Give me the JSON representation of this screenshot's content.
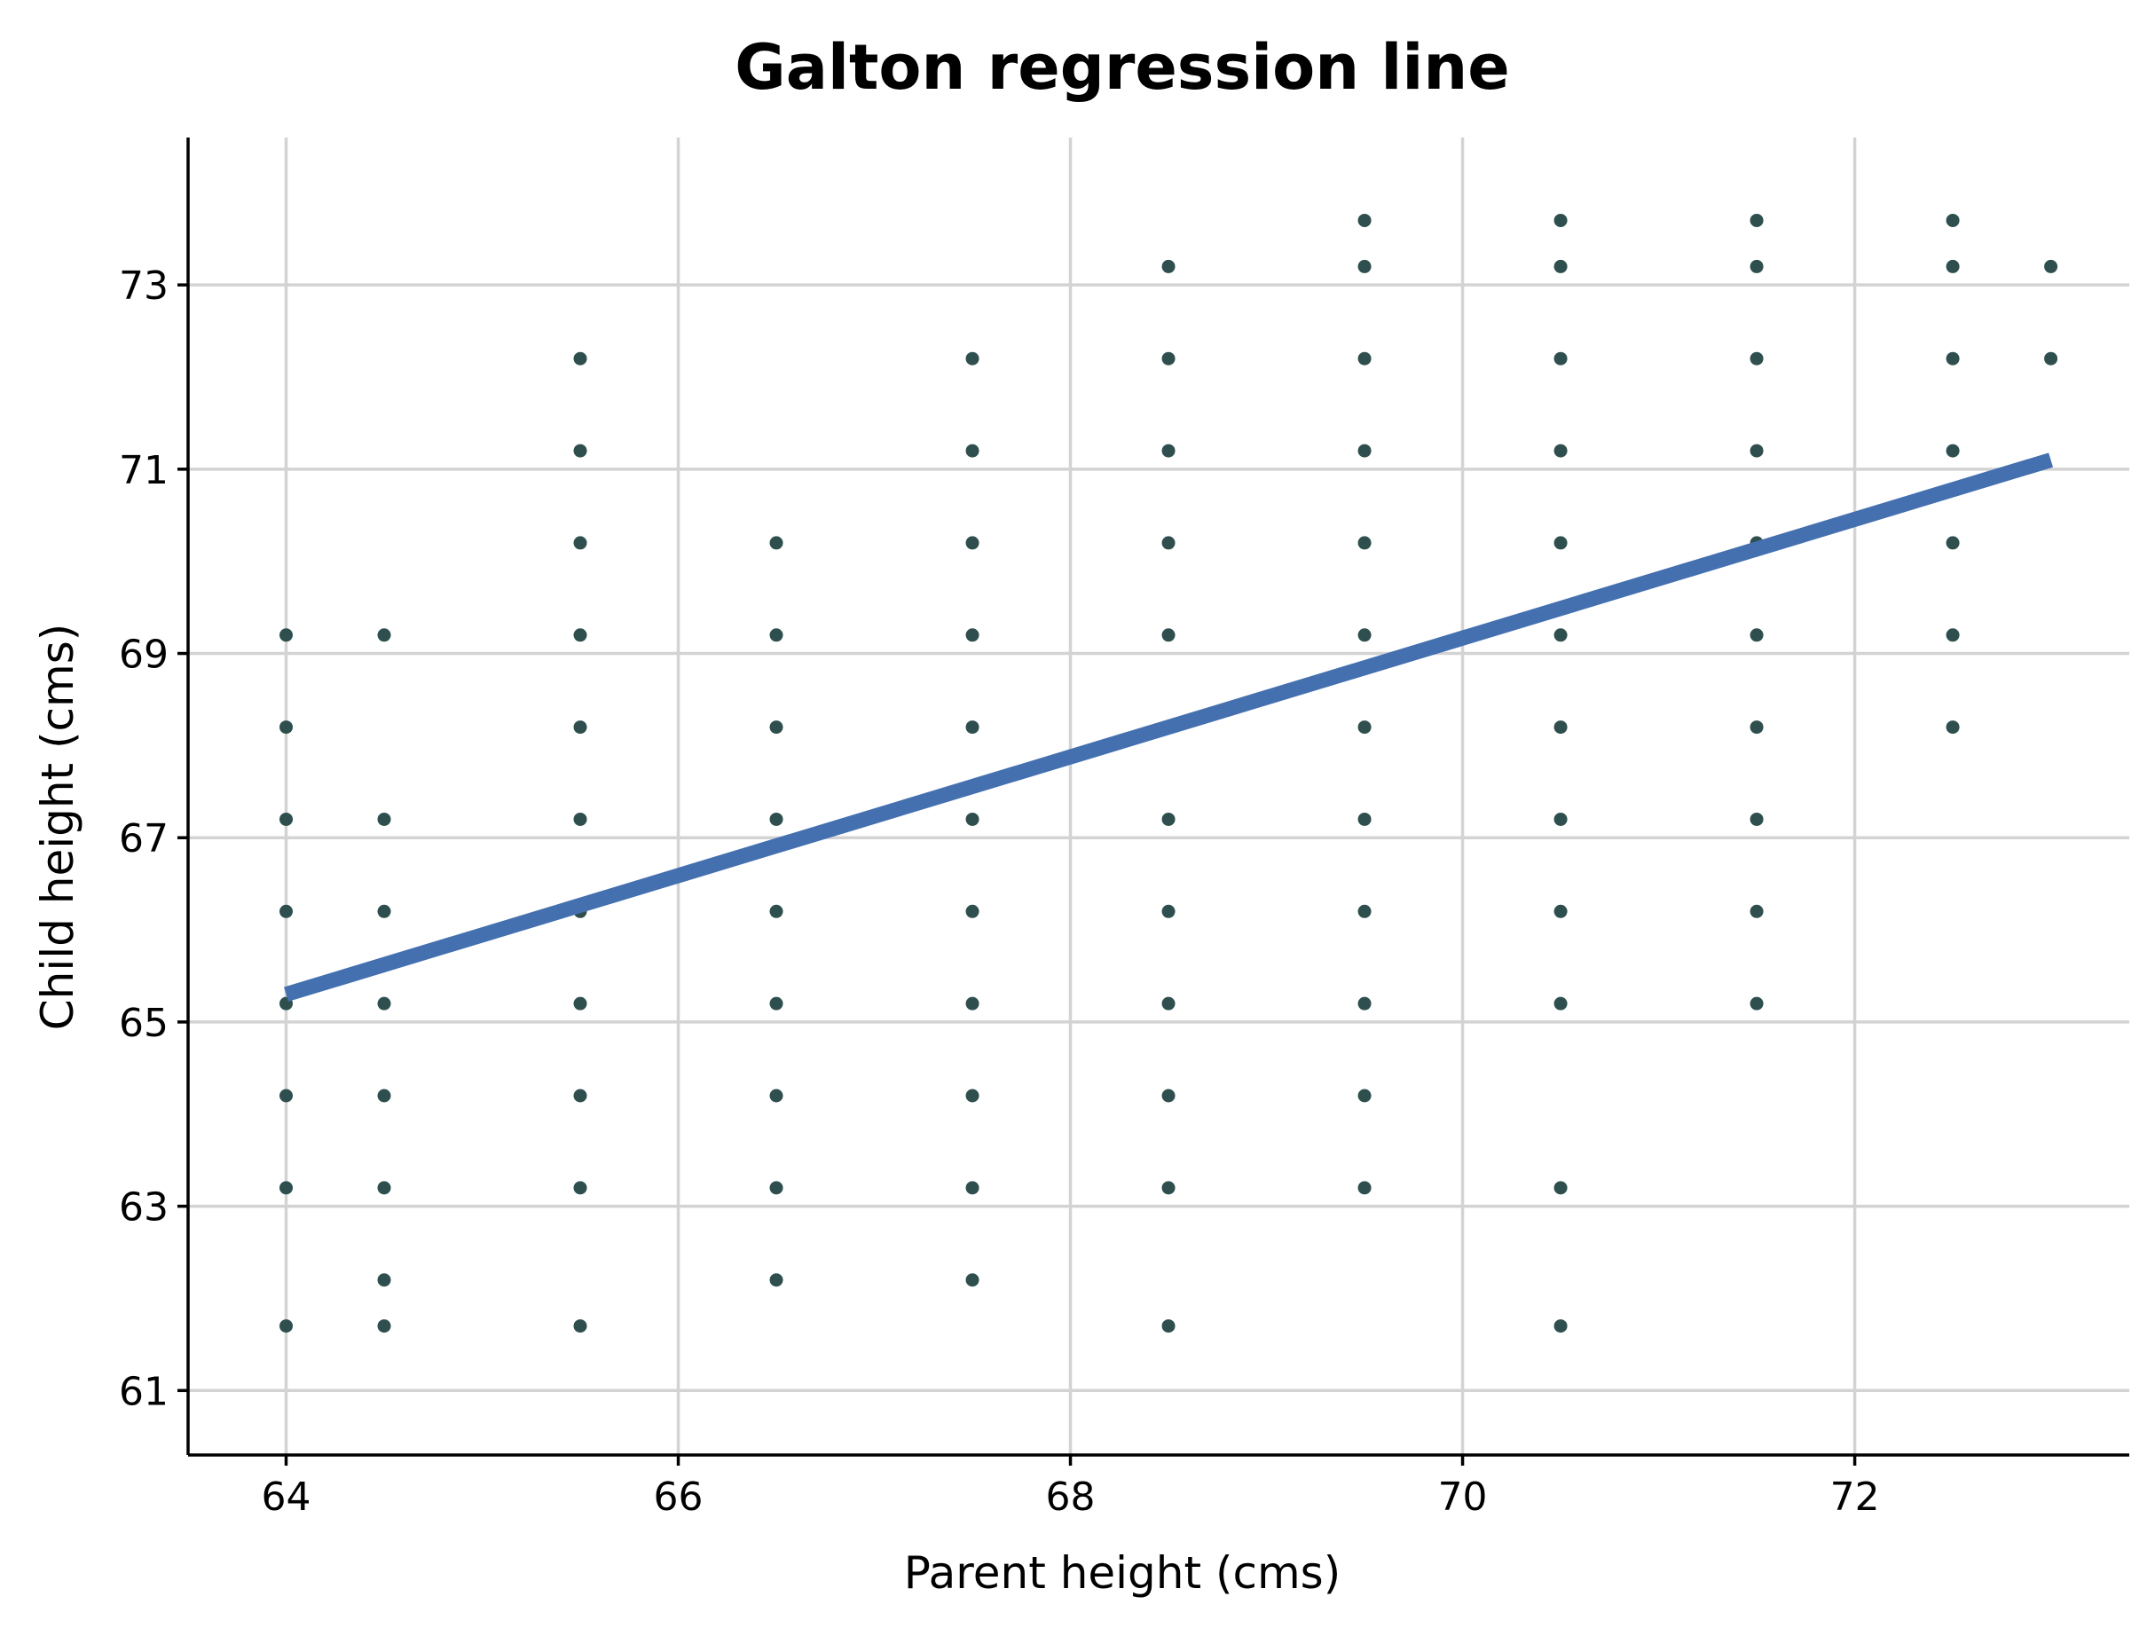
{
  "chart_data": {
    "type": "scatter",
    "title": "Galton regression line",
    "xlabel": "Parent height (cms)",
    "ylabel": "Child height (cms)",
    "xlim": [
      63.5,
      73.4
    ],
    "ylim": [
      60.3,
      74.6
    ],
    "x_ticks": [
      64,
      66,
      68,
      70,
      72
    ],
    "y_ticks": [
      61,
      63,
      65,
      67,
      69,
      71,
      73
    ],
    "grid": true,
    "legend": "none",
    "point_color": "#2f4f4f",
    "line_color": "#4470b0",
    "points": [
      [
        64.0,
        61.7
      ],
      [
        64.0,
        63.2
      ],
      [
        64.0,
        64.2
      ],
      [
        64.0,
        65.2
      ],
      [
        64.0,
        66.2
      ],
      [
        64.0,
        67.2
      ],
      [
        64.0,
        68.2
      ],
      [
        64.0,
        69.2
      ],
      [
        64.5,
        61.7
      ],
      [
        64.5,
        62.2
      ],
      [
        64.5,
        63.2
      ],
      [
        64.5,
        64.2
      ],
      [
        64.5,
        65.2
      ],
      [
        64.5,
        66.2
      ],
      [
        64.5,
        67.2
      ],
      [
        64.5,
        69.2
      ],
      [
        65.5,
        61.7
      ],
      [
        65.5,
        63.2
      ],
      [
        65.5,
        64.2
      ],
      [
        65.5,
        65.2
      ],
      [
        65.5,
        66.2
      ],
      [
        65.5,
        67.2
      ],
      [
        65.5,
        68.2
      ],
      [
        65.5,
        69.2
      ],
      [
        65.5,
        70.2
      ],
      [
        65.5,
        71.2
      ],
      [
        65.5,
        72.2
      ],
      [
        66.5,
        62.2
      ],
      [
        66.5,
        63.2
      ],
      [
        66.5,
        64.2
      ],
      [
        66.5,
        65.2
      ],
      [
        66.5,
        66.2
      ],
      [
        66.5,
        67.2
      ],
      [
        66.5,
        68.2
      ],
      [
        66.5,
        69.2
      ],
      [
        66.5,
        70.2
      ],
      [
        67.5,
        62.2
      ],
      [
        67.5,
        63.2
      ],
      [
        67.5,
        64.2
      ],
      [
        67.5,
        65.2
      ],
      [
        67.5,
        66.2
      ],
      [
        67.5,
        67.2
      ],
      [
        67.5,
        68.2
      ],
      [
        67.5,
        69.2
      ],
      [
        67.5,
        70.2
      ],
      [
        67.5,
        71.2
      ],
      [
        67.5,
        72.2
      ],
      [
        68.5,
        61.7
      ],
      [
        68.5,
        63.2
      ],
      [
        68.5,
        64.2
      ],
      [
        68.5,
        65.2
      ],
      [
        68.5,
        66.2
      ],
      [
        68.5,
        67.2
      ],
      [
        68.5,
        69.2
      ],
      [
        68.5,
        70.2
      ],
      [
        68.5,
        71.2
      ],
      [
        68.5,
        72.2
      ],
      [
        68.5,
        73.2
      ],
      [
        69.5,
        63.2
      ],
      [
        69.5,
        64.2
      ],
      [
        69.5,
        65.2
      ],
      [
        69.5,
        66.2
      ],
      [
        69.5,
        67.2
      ],
      [
        69.5,
        68.2
      ],
      [
        69.5,
        69.2
      ],
      [
        69.5,
        70.2
      ],
      [
        69.5,
        71.2
      ],
      [
        69.5,
        72.2
      ],
      [
        69.5,
        73.2
      ],
      [
        69.5,
        73.7
      ],
      [
        70.5,
        61.7
      ],
      [
        70.5,
        63.2
      ],
      [
        70.5,
        65.2
      ],
      [
        70.5,
        66.2
      ],
      [
        70.5,
        67.2
      ],
      [
        70.5,
        68.2
      ],
      [
        70.5,
        69.2
      ],
      [
        70.5,
        70.2
      ],
      [
        70.5,
        71.2
      ],
      [
        70.5,
        72.2
      ],
      [
        70.5,
        73.2
      ],
      [
        70.5,
        73.7
      ],
      [
        71.5,
        65.2
      ],
      [
        71.5,
        66.2
      ],
      [
        71.5,
        67.2
      ],
      [
        71.5,
        68.2
      ],
      [
        71.5,
        69.2
      ],
      [
        71.5,
        70.2
      ],
      [
        71.5,
        71.2
      ],
      [
        71.5,
        72.2
      ],
      [
        71.5,
        73.2
      ],
      [
        71.5,
        73.7
      ],
      [
        72.5,
        68.2
      ],
      [
        72.5,
        69.2
      ],
      [
        72.5,
        70.2
      ],
      [
        72.5,
        71.2
      ],
      [
        72.5,
        72.2
      ],
      [
        72.5,
        73.2
      ],
      [
        72.5,
        73.7
      ],
      [
        73.0,
        72.2
      ],
      [
        73.0,
        73.2
      ]
    ],
    "regression_line": [
      [
        64.0,
        65.3
      ],
      [
        73.0,
        71.1
      ]
    ]
  }
}
